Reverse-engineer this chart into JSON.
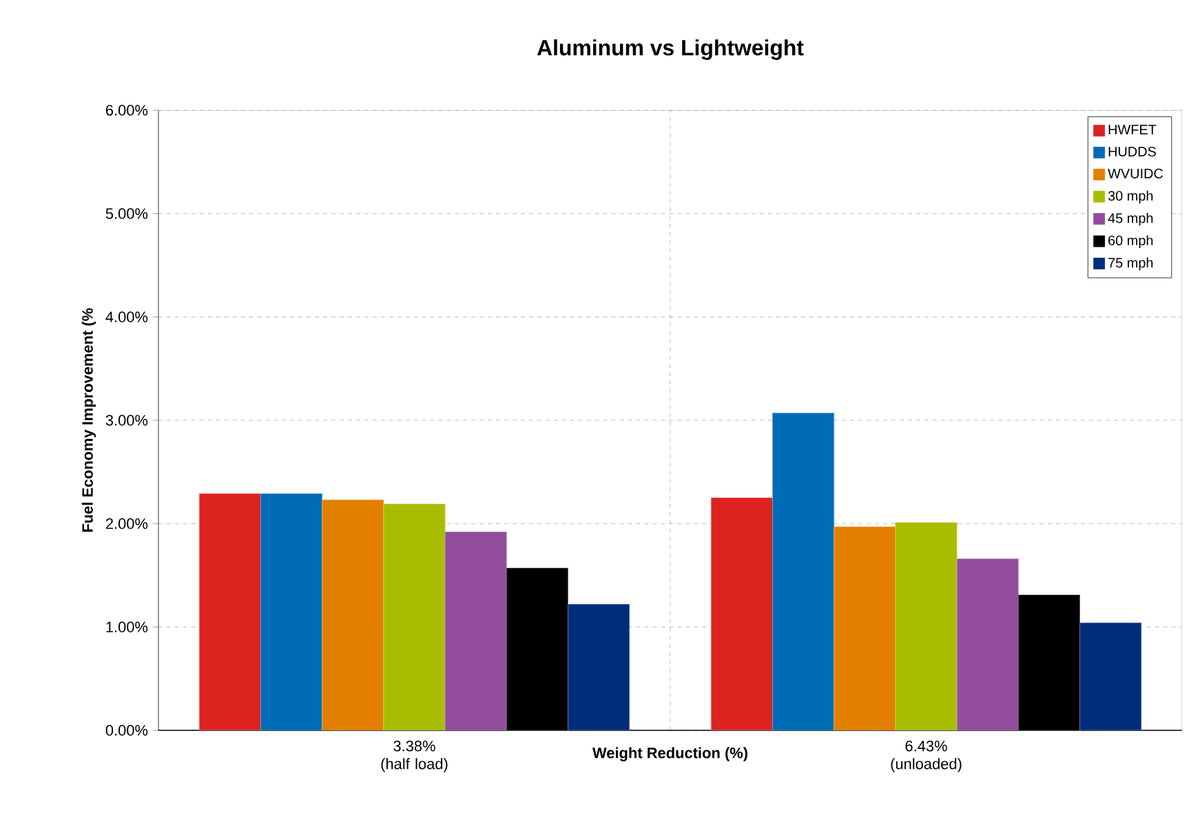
{
  "chart_data": {
    "type": "bar",
    "title": "Aluminum vs Lightweight",
    "xlabel": "Weight Reduction (%)",
    "ylabel": "Fuel Economy Improvement (%",
    "categories": [
      "3.38% (half load)",
      "6.43% (unloaded)"
    ],
    "series": [
      {
        "name": "HWFET",
        "color": "#dc2320",
        "values": [
          2.29,
          2.25
        ]
      },
      {
        "name": "HUDDS",
        "color": "#006bb6",
        "values": [
          2.29,
          3.07
        ]
      },
      {
        "name": "WVUIDC",
        "color": "#e38000",
        "values": [
          2.23,
          1.97
        ]
      },
      {
        "name": "30 mph",
        "color": "#a9bd00",
        "values": [
          2.19,
          2.01
        ]
      },
      {
        "name": "45 mph",
        "color": "#924c9c",
        "values": [
          1.92,
          1.66
        ]
      },
      {
        "name": "60 mph",
        "color": "#000000",
        "values": [
          1.57,
          1.31
        ]
      },
      {
        "name": "75 mph",
        "color": "#002d7a",
        "values": [
          1.22,
          1.04
        ]
      }
    ],
    "ylim": [
      0,
      6
    ],
    "yticks": [
      {
        "value": 0,
        "label": "0.00%"
      },
      {
        "value": 1,
        "label": "1.00%"
      },
      {
        "value": 2,
        "label": "2.00%"
      },
      {
        "value": 3,
        "label": "3.00%"
      },
      {
        "value": 4,
        "label": "4.00%"
      },
      {
        "value": 5,
        "label": "5.00%"
      },
      {
        "value": 6,
        "label": "6.00%"
      }
    ],
    "grid": true,
    "legend": "top right"
  }
}
